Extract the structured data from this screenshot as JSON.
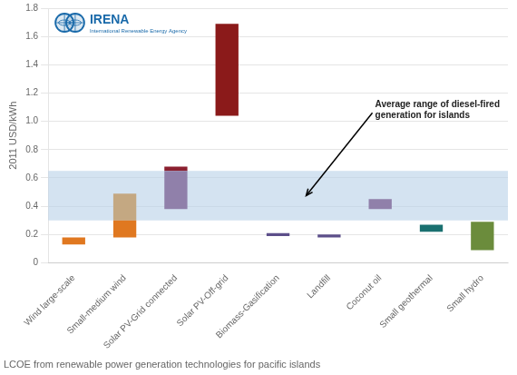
{
  "chart_data": {
    "type": "bar",
    "categories": [
      "Wind large-scale",
      "Small-medium wind",
      "Solar PV-Grid connected",
      "Solar PV-Off-grid",
      "Biomass-Gasification",
      "Landfill",
      "Coconut oil",
      "Small geothermal",
      "Small hydro"
    ],
    "series": [
      {
        "values": [
          [
            0.13,
            0.18
          ],
          [
            0.18,
            0.3
          ],
          [
            0.38,
            0.65
          ],
          [
            1.04,
            1.69
          ],
          [
            0.19,
            0.21
          ],
          [
            0.18,
            0.2
          ],
          [
            0.38,
            0.45
          ],
          [
            0.22,
            0.27
          ],
          [
            0.09,
            0.29
          ]
        ],
        "colors": [
          "#e07820",
          "#e07820",
          "#9080aa",
          "#8b1a1a",
          "#5c4f8a",
          "#5c4f8a",
          "#9080aa",
          "#1a7070",
          "#6b8c3c"
        ]
      },
      {
        "values": [
          null,
          [
            0.3,
            0.49
          ],
          [
            0.65,
            0.68
          ],
          null,
          null,
          null,
          null,
          null,
          null
        ],
        "colors": [
          null,
          "#c4a882",
          "#8b2030",
          null,
          null,
          null,
          null,
          null,
          null
        ]
      }
    ],
    "ylabel": "2011 USD/kWh",
    "ylim": [
      0,
      1.8
    ],
    "yticks": [
      0,
      0.2,
      0.4,
      0.6,
      0.8,
      {
        "value": 1.0,
        "label": "1.0"
      },
      1.2,
      1.4,
      1.6,
      1.8
    ],
    "grid": true,
    "band": {
      "low": 0.3,
      "high": 0.65,
      "color": "#b8d0e8"
    },
    "annotations": [
      {
        "text": "Average range of diesel-fired\ngeneration for islands",
        "x": 4.55,
        "y": 0.475,
        "text_x": 5.9,
        "text_y": 1.08
      }
    ],
    "caption": "LCOE from renewable power generation technologies for pacific islands",
    "logo": {
      "text": "IRENA",
      "subtitle": "International Renewable Energy Agency",
      "color": "#1a6aaa"
    }
  }
}
